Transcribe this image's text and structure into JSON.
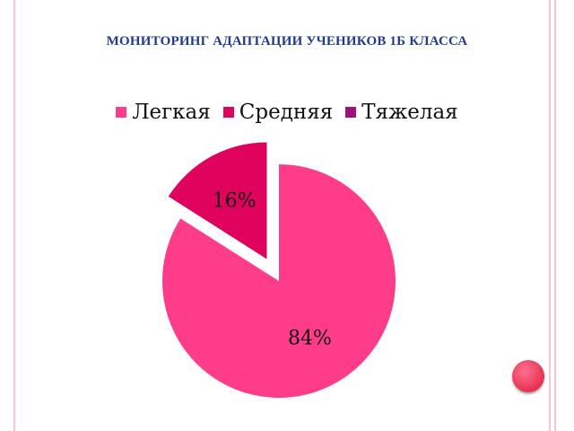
{
  "title": "МОНИТОРИНГ АДАПТАЦИИ УЧЕНИКОВ 1Б КЛАССА",
  "chart_data": {
    "type": "pie",
    "categories": [
      "Легкая",
      "Средняя",
      "Тяжелая"
    ],
    "values": [
      84,
      16,
      0
    ],
    "data_labels": [
      "84%",
      "16%",
      ""
    ],
    "colors": [
      "#ff3c8a",
      "#e0035e",
      "#a0107a"
    ],
    "legend_position": "top",
    "exploded_slice": "Средняя"
  }
}
